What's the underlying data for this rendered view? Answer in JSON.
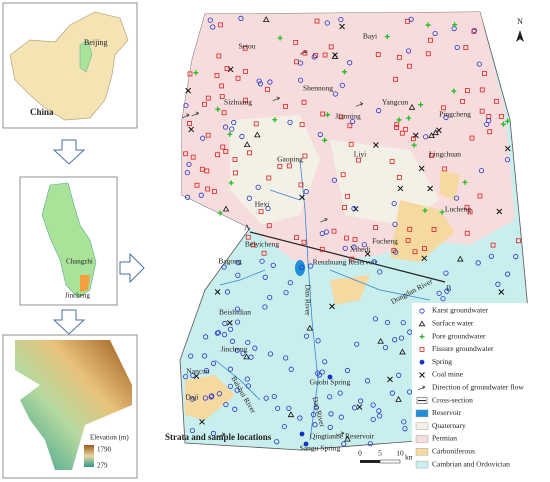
{
  "insets": {
    "china": {
      "capital": "Beijing",
      "country": "China"
    },
    "province": {
      "cities": [
        "Changzhi",
        "Jincheng"
      ]
    },
    "elevation": {
      "title": "Elevation (m)",
      "max": "1790",
      "min": "279"
    }
  },
  "map": {
    "places": [
      "Setou",
      "Bayi",
      "Shennong",
      "Sizhuang",
      "Jianning",
      "Yangcun",
      "Pingcheng",
      "Lingchuan",
      "Gaoping",
      "Liyi",
      "Hexi",
      "Lucheng",
      "Beiyicheng",
      "Xihedi",
      "Fucheng",
      "Renzhuang Reservoir",
      "Bagong",
      "Dan River",
      "Dongdan River",
      "Beishidian",
      "Jincheng",
      "Nancun",
      "Daji",
      "Baishui River",
      "Guobi Spring",
      "Dan River",
      "Qingtianhe Reservoir",
      "Sangu Spring"
    ],
    "cross_section": {
      "start": "A",
      "end": "B"
    },
    "north": "N",
    "scale": {
      "ticks": [
        "0",
        "5",
        "10"
      ],
      "unit": "km"
    },
    "caption": "Strata and sample locations"
  },
  "legend": [
    "Karst groundwater",
    "Surface water",
    "Pore groundwater",
    "Fissure groundwater",
    "Spring",
    "Coal mine",
    "Direction of groundwater flow",
    "Cross-section",
    "Reservoir",
    "Quaternary",
    "Permian",
    "Carboniferous",
    "Cambrian and Ordovician"
  ]
}
